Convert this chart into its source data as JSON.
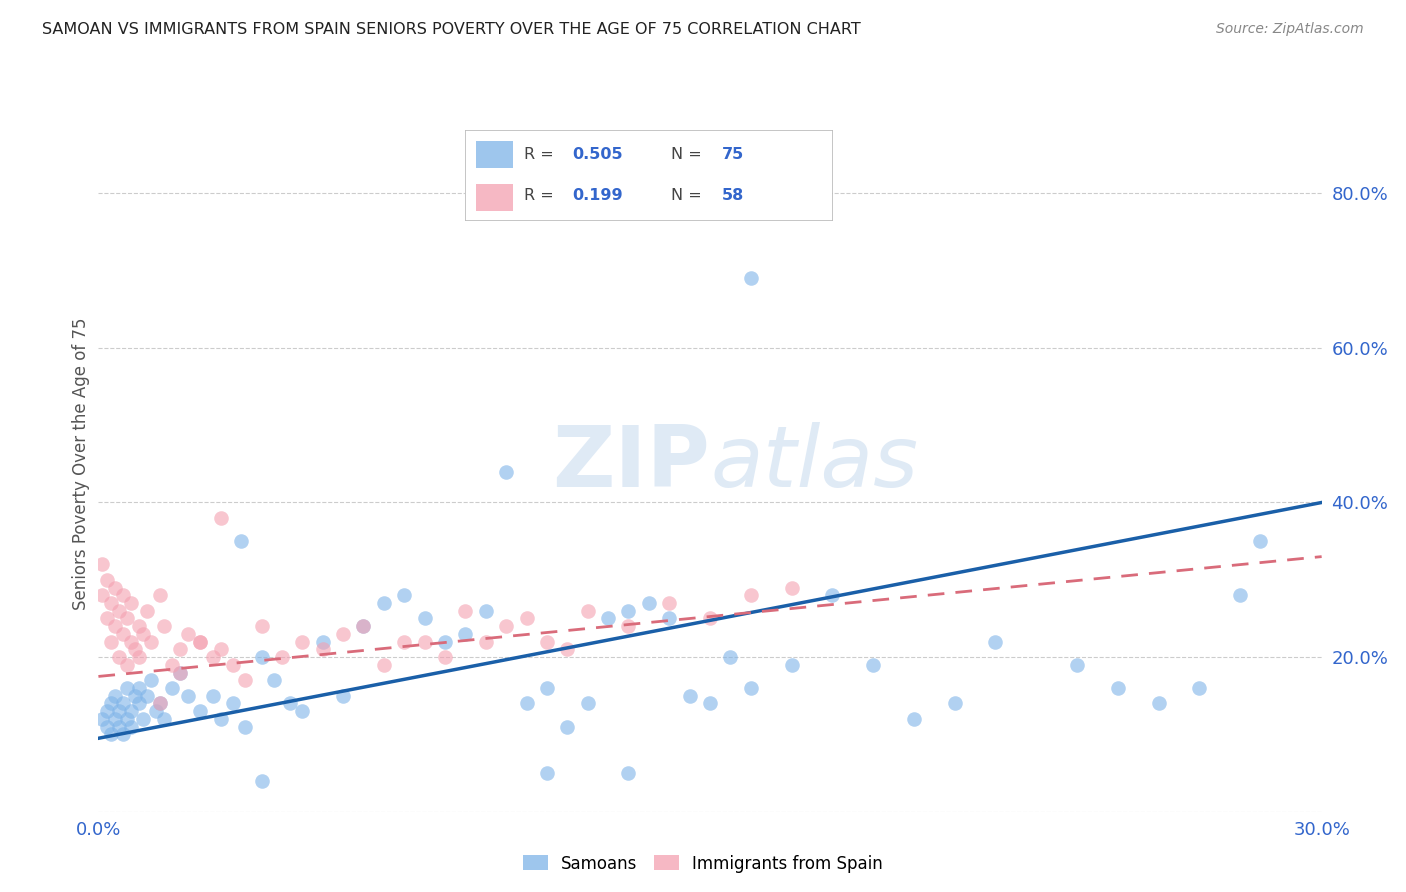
{
  "title": "SAMOAN VS IMMIGRANTS FROM SPAIN SENIORS POVERTY OVER THE AGE OF 75 CORRELATION CHART",
  "source": "Source: ZipAtlas.com",
  "ylabel": "Seniors Poverty Over the Age of 75",
  "xlim": [
    0.0,
    0.3
  ],
  "ylim": [
    0.0,
    0.9
  ],
  "yticks": [
    0.0,
    0.2,
    0.4,
    0.6,
    0.8
  ],
  "xticks": [
    0.0,
    0.05,
    0.1,
    0.15,
    0.2,
    0.25,
    0.3
  ],
  "samoan_R": 0.505,
  "samoan_N": 75,
  "spain_R": 0.199,
  "spain_N": 58,
  "samoan_color": "#7EB3E8",
  "spain_color": "#F4A0B0",
  "samoan_line_color": "#1A5FA8",
  "spain_line_color": "#D96B7A",
  "watermark_zip": "ZIP",
  "watermark_atlas": "atlas",
  "samoan_x": [
    0.001,
    0.002,
    0.002,
    0.003,
    0.003,
    0.004,
    0.004,
    0.005,
    0.005,
    0.006,
    0.006,
    0.007,
    0.007,
    0.008,
    0.008,
    0.009,
    0.01,
    0.01,
    0.011,
    0.012,
    0.013,
    0.014,
    0.015,
    0.016,
    0.018,
    0.02,
    0.022,
    0.025,
    0.028,
    0.03,
    0.033,
    0.036,
    0.04,
    0.043,
    0.047,
    0.05,
    0.055,
    0.06,
    0.065,
    0.07,
    0.075,
    0.08,
    0.085,
    0.09,
    0.095,
    0.1,
    0.105,
    0.11,
    0.115,
    0.12,
    0.125,
    0.13,
    0.135,
    0.14,
    0.145,
    0.15,
    0.155,
    0.16,
    0.17,
    0.18,
    0.19,
    0.2,
    0.21,
    0.22,
    0.24,
    0.25,
    0.26,
    0.27,
    0.28,
    0.285,
    0.11,
    0.13,
    0.16,
    0.035,
    0.04
  ],
  "samoan_y": [
    0.12,
    0.13,
    0.11,
    0.14,
    0.1,
    0.12,
    0.15,
    0.11,
    0.13,
    0.1,
    0.14,
    0.12,
    0.16,
    0.11,
    0.13,
    0.15,
    0.14,
    0.16,
    0.12,
    0.15,
    0.17,
    0.13,
    0.14,
    0.12,
    0.16,
    0.18,
    0.15,
    0.13,
    0.15,
    0.12,
    0.14,
    0.11,
    0.2,
    0.17,
    0.14,
    0.13,
    0.22,
    0.15,
    0.24,
    0.27,
    0.28,
    0.25,
    0.22,
    0.23,
    0.26,
    0.44,
    0.14,
    0.16,
    0.11,
    0.14,
    0.25,
    0.26,
    0.27,
    0.25,
    0.15,
    0.14,
    0.2,
    0.16,
    0.19,
    0.28,
    0.19,
    0.12,
    0.14,
    0.22,
    0.19,
    0.16,
    0.14,
    0.16,
    0.28,
    0.35,
    0.05,
    0.05,
    0.69,
    0.35,
    0.04
  ],
  "spain_x": [
    0.001,
    0.001,
    0.002,
    0.002,
    0.003,
    0.003,
    0.004,
    0.004,
    0.005,
    0.005,
    0.006,
    0.006,
    0.007,
    0.007,
    0.008,
    0.008,
    0.009,
    0.01,
    0.01,
    0.011,
    0.012,
    0.013,
    0.015,
    0.016,
    0.018,
    0.02,
    0.022,
    0.025,
    0.028,
    0.03,
    0.033,
    0.036,
    0.04,
    0.045,
    0.05,
    0.055,
    0.06,
    0.065,
    0.07,
    0.075,
    0.08,
    0.085,
    0.09,
    0.095,
    0.1,
    0.105,
    0.11,
    0.115,
    0.12,
    0.13,
    0.14,
    0.15,
    0.16,
    0.17,
    0.03,
    0.025,
    0.02,
    0.015
  ],
  "spain_y": [
    0.28,
    0.32,
    0.25,
    0.3,
    0.22,
    0.27,
    0.24,
    0.29,
    0.2,
    0.26,
    0.23,
    0.28,
    0.19,
    0.25,
    0.22,
    0.27,
    0.21,
    0.24,
    0.2,
    0.23,
    0.26,
    0.22,
    0.28,
    0.24,
    0.19,
    0.21,
    0.23,
    0.22,
    0.2,
    0.21,
    0.19,
    0.17,
    0.24,
    0.2,
    0.22,
    0.21,
    0.23,
    0.24,
    0.19,
    0.22,
    0.22,
    0.2,
    0.26,
    0.22,
    0.24,
    0.25,
    0.22,
    0.21,
    0.26,
    0.24,
    0.27,
    0.25,
    0.28,
    0.29,
    0.38,
    0.22,
    0.18,
    0.14
  ],
  "samoan_line": {
    "x0": 0.0,
    "x1": 0.3,
    "y0": 0.095,
    "y1": 0.4
  },
  "spain_line": {
    "x0": 0.0,
    "x1": 0.3,
    "y0": 0.175,
    "y1": 0.33
  }
}
